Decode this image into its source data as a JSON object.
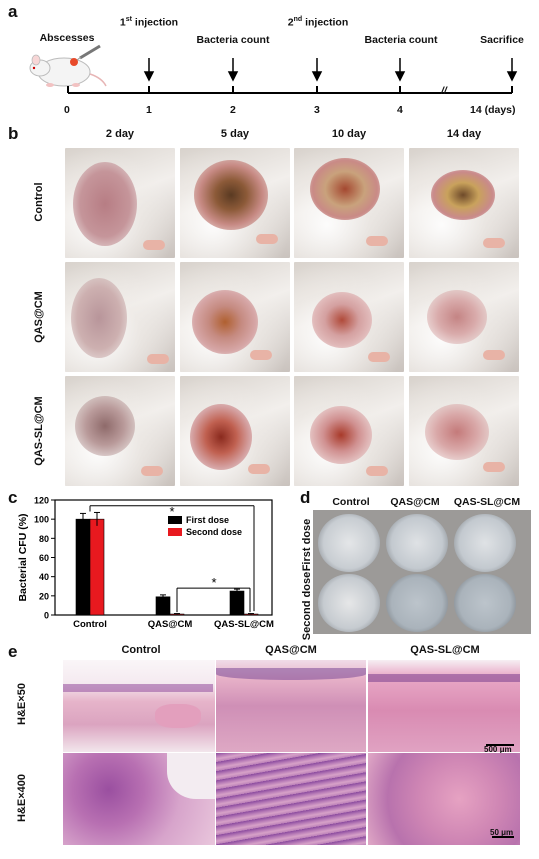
{
  "panels": {
    "a": "a",
    "b": "b",
    "c": "c",
    "d": "d",
    "e": "e"
  },
  "timeline": {
    "start_label": "Abscesses",
    "events": [
      {
        "label": "1",
        "sup": "st",
        "rest": " injection"
      },
      {
        "label": "Bacteria count"
      },
      {
        "label": "2",
        "sup": "nd",
        "rest": " injection"
      },
      {
        "label": "Bacteria count"
      },
      {
        "label": "Sacrifice"
      }
    ],
    "ticks": [
      "0",
      "1",
      "2",
      "3",
      "4",
      "14 (days)"
    ],
    "break_mark": "//"
  },
  "photos": {
    "days": [
      "2 day",
      "5 day",
      "10 day",
      "14 day"
    ],
    "groups": [
      "Control",
      "QAS@CM",
      "QAS-SL@CM"
    ]
  },
  "chart_data": {
    "type": "bar",
    "categories": [
      "Control",
      "QAS@CM",
      "QAS-SL@CM"
    ],
    "series": [
      {
        "name": "First dose",
        "values": [
          100,
          19,
          25
        ],
        "errors": [
          6,
          2,
          2
        ],
        "color": "#000000"
      },
      {
        "name": "Second dose",
        "values": [
          100,
          1,
          1
        ],
        "errors": [
          7,
          0.5,
          0.5
        ],
        "color": "#e8191f"
      }
    ],
    "ylabel": "Bacterial CFU (%)",
    "xlabel": "",
    "ylim": [
      0,
      120
    ],
    "yticks": [
      "0",
      "20",
      "40",
      "60",
      "80",
      "100",
      "120"
    ],
    "significance": [
      "*",
      "*"
    ],
    "legend_position": "top-right"
  },
  "plates": {
    "columns": [
      "Control",
      "QAS@CM",
      "QAS-SL@CM"
    ],
    "rows": [
      "First dose",
      "Second dose"
    ]
  },
  "histology": {
    "columns": [
      "Control",
      "QAS@CM",
      "QAS-SL@CM"
    ],
    "rows": [
      "H&E×50",
      "H&E×400"
    ],
    "scale_bars": [
      "500 μm",
      "50 μm"
    ]
  }
}
